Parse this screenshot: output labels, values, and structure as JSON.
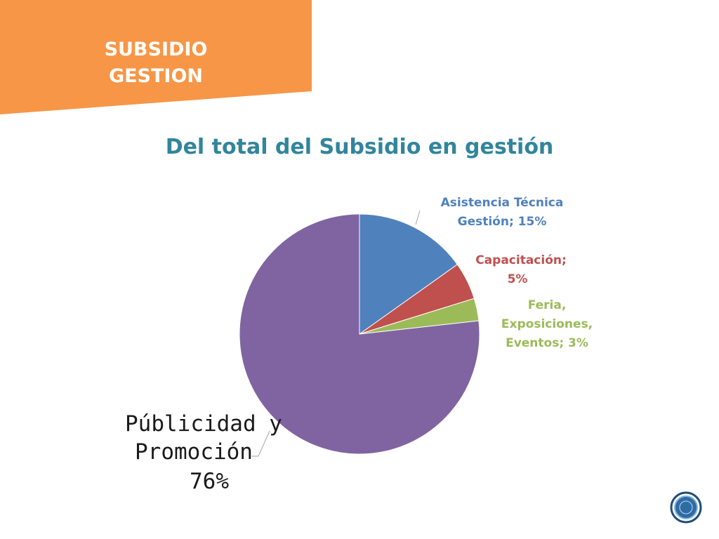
{
  "banner": {
    "line1": "SUBSIDIO",
    "line2": "GESTION",
    "color": "#f79646"
  },
  "chart_data": {
    "type": "pie",
    "title": "Del total del Subsidio en gestión",
    "slices": [
      {
        "label": "Asistencia Técnica Gestión; 15%",
        "value": 15,
        "color": "#4f81bd"
      },
      {
        "label": "Capacitación; 5%",
        "value": 5,
        "color": "#c0504d"
      },
      {
        "label": "Feria, Exposiciones, Eventos; 3%",
        "value": 3,
        "color": "#9bbb59"
      },
      {
        "label": "Públicidad y Promoción 76%",
        "value": 76,
        "color": "#8064a2"
      }
    ],
    "labels": {
      "asistencia": {
        "line1": "Asistencia Técnica",
        "line2": "Gestión; 15%"
      },
      "capacitacion": {
        "line1": "Capacitación;",
        "line2": "5%"
      },
      "feria": {
        "line1": "Feria,",
        "line2": "Exposiciones,",
        "line3": "Eventos; 3%"
      },
      "publicidad": {
        "line1": "Públicidad y",
        "line2": "Promoción",
        "line3": "76%"
      }
    }
  },
  "colors": {
    "title": "#31859c",
    "leader_line": "#a6a6a6",
    "seal": "#1f4e79"
  },
  "icons": {
    "corner_seal": "seal-icon"
  }
}
